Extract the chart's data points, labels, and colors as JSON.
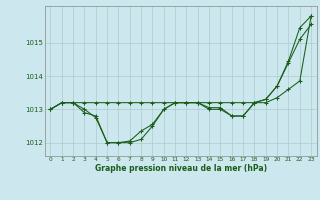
{
  "xlabel": "Graphe pression niveau de la mer (hPa)",
  "bg_color": "#cce8ee",
  "grid_color": "#aacccc",
  "line_color": "#1a5c1a",
  "x_ticks": [
    0,
    1,
    2,
    3,
    4,
    5,
    6,
    7,
    8,
    9,
    10,
    11,
    12,
    13,
    14,
    15,
    16,
    17,
    18,
    19,
    20,
    21,
    22,
    23
  ],
  "ylim": [
    1011.6,
    1016.1
  ],
  "yticks": [
    1012,
    1013,
    1014,
    1015
  ],
  "series": [
    [
      1013.0,
      1013.2,
      1013.2,
      1013.2,
      1013.2,
      1013.2,
      1013.2,
      1013.2,
      1013.2,
      1013.2,
      1013.2,
      1013.2,
      1013.2,
      1013.2,
      1013.2,
      1013.2,
      1013.2,
      1013.2,
      1013.2,
      1013.2,
      1013.35,
      1013.6,
      1013.85,
      1015.8
    ],
    [
      1013.0,
      1013.2,
      1013.2,
      1012.9,
      1012.8,
      1012.0,
      1012.0,
      1012.0,
      1012.1,
      1012.5,
      1013.0,
      1013.2,
      1013.2,
      1013.2,
      1013.05,
      1013.05,
      1012.8,
      1012.8,
      1013.2,
      1013.3,
      1013.7,
      1014.4,
      1015.1,
      1015.55
    ],
    [
      1013.0,
      1013.2,
      1013.2,
      1013.0,
      1012.75,
      1012.0,
      1012.0,
      1012.05,
      1012.35,
      1012.55,
      1013.0,
      1013.2,
      1013.2,
      1013.2,
      1013.0,
      1013.0,
      1012.8,
      1012.8,
      1013.2,
      1013.3,
      1013.7,
      1014.45,
      1015.45,
      1015.8
    ]
  ]
}
